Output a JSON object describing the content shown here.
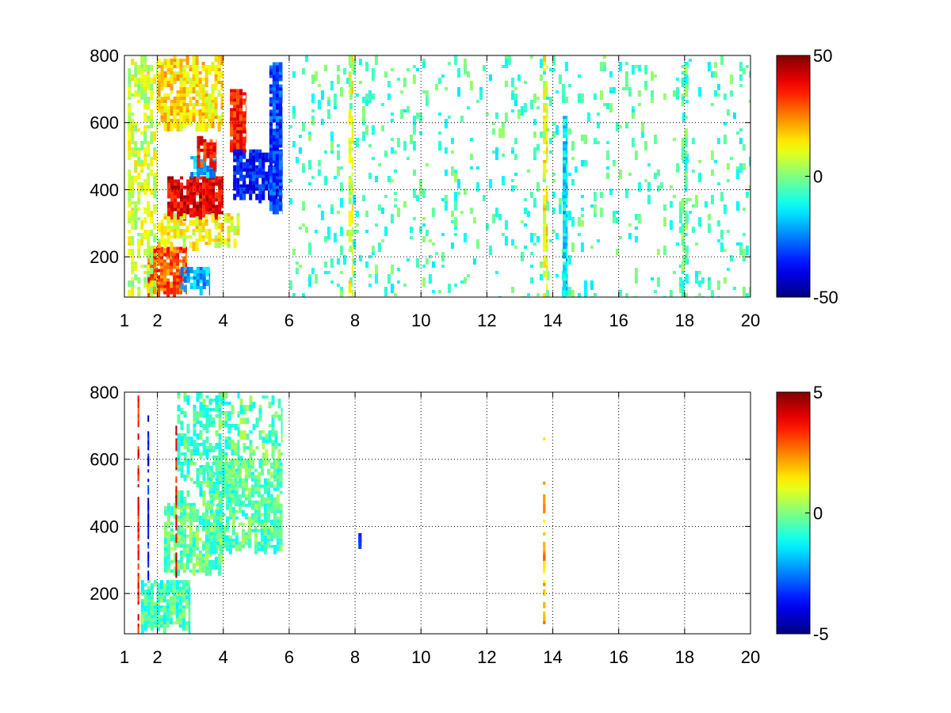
{
  "chart_data": [
    {
      "type": "heatmap",
      "title": "",
      "xlabel": "",
      "ylabel": "",
      "xlim": [
        1,
        20
      ],
      "ylim": [
        80,
        800
      ],
      "x_ticks": [
        "1",
        "2",
        "4",
        "6",
        "8",
        "10",
        "12",
        "14",
        "16",
        "18",
        "20"
      ],
      "x_tick_values": [
        1,
        2,
        4,
        6,
        8,
        10,
        12,
        14,
        16,
        18,
        20
      ],
      "y_ticks": [
        "200",
        "400",
        "600",
        "800"
      ],
      "y_tick_values": [
        200,
        400,
        600,
        800
      ],
      "grid": true,
      "colormap": "jet",
      "colorbar": {
        "min": -50,
        "max": 50,
        "ticks": [
          "50",
          "0",
          "-50"
        ],
        "tick_values": [
          50,
          0,
          -50
        ]
      },
      "features": [
        {
          "x": [
            1.7,
            2.9
          ],
          "y": [
            100,
            230
          ],
          "value": 30,
          "density": 0.8
        },
        {
          "x": [
            2.7,
            3.6
          ],
          "y": [
            110,
            170
          ],
          "value": -20,
          "density": 0.7
        },
        {
          "x": [
            2.3,
            4.0
          ],
          "y": [
            330,
            440
          ],
          "value": 40,
          "density": 0.8
        },
        {
          "x": [
            3.0,
            3.8
          ],
          "y": [
            450,
            500
          ],
          "value": -20,
          "density": 0.6
        },
        {
          "x": [
            3.2,
            3.8
          ],
          "y": [
            480,
            560
          ],
          "value": 35,
          "density": 0.6
        },
        {
          "x": [
            4.2,
            4.7
          ],
          "y": [
            520,
            700
          ],
          "value": 35,
          "density": 0.7
        },
        {
          "x": [
            4.3,
            5.8
          ],
          "y": [
            380,
            520
          ],
          "value": -35,
          "density": 0.7
        },
        {
          "x": [
            5.4,
            5.8
          ],
          "y": [
            350,
            780
          ],
          "value": -30,
          "density": 0.8
        },
        {
          "x": [
            2.0,
            4.0
          ],
          "y": [
            600,
            800
          ],
          "value": 15,
          "density": 0.6
        },
        {
          "x": [
            1.1,
            2.0
          ],
          "y": [
            80,
            800
          ],
          "value": 8,
          "density": 0.35
        },
        {
          "x": [
            2.0,
            4.5
          ],
          "y": [
            240,
            330
          ],
          "value": 12,
          "density": 0.45
        },
        {
          "x": [
            6.0,
            20.0
          ],
          "y": [
            80,
            800
          ],
          "value": -6,
          "density": 0.07
        },
        {
          "x": [
            14.3,
            14.45
          ],
          "y": [
            100,
            620
          ],
          "value": -15,
          "density": 0.9
        },
        {
          "x": [
            13.7,
            13.85
          ],
          "y": [
            80,
            800
          ],
          "value": 12,
          "density": 0.45
        },
        {
          "x": [
            7.8,
            7.95
          ],
          "y": [
            80,
            800
          ],
          "value": 10,
          "density": 0.35
        },
        {
          "x": [
            17.9,
            18.1
          ],
          "y": [
            80,
            800
          ],
          "value": -4,
          "density": 0.35
        }
      ]
    },
    {
      "type": "heatmap",
      "title": "",
      "xlabel": "",
      "ylabel": "",
      "xlim": [
        1,
        20
      ],
      "ylim": [
        80,
        800
      ],
      "x_ticks": [
        "1",
        "2",
        "4",
        "6",
        "8",
        "10",
        "12",
        "14",
        "16",
        "18",
        "20"
      ],
      "x_tick_values": [
        1,
        2,
        4,
        6,
        8,
        10,
        12,
        14,
        16,
        18,
        20
      ],
      "y_ticks": [
        "200",
        "400",
        "600",
        "800"
      ],
      "y_tick_values": [
        200,
        400,
        600,
        800
      ],
      "grid": true,
      "colormap": "jet",
      "colorbar": {
        "min": -5,
        "max": 5,
        "ticks": [
          "5",
          "0",
          "-5"
        ],
        "tick_values": [
          5,
          0,
          -5
        ]
      },
      "features": [
        {
          "x": [
            1.5,
            3.0
          ],
          "y": [
            100,
            240
          ],
          "value": -0.5,
          "density": 0.65
        },
        {
          "x": [
            2.2,
            4.0
          ],
          "y": [
            270,
            470
          ],
          "value": -0.3,
          "density": 0.55
        },
        {
          "x": [
            3.5,
            5.8
          ],
          "y": [
            340,
            600
          ],
          "value": -0.4,
          "density": 0.6
        },
        {
          "x": [
            2.6,
            4.5
          ],
          "y": [
            480,
            800
          ],
          "value": -0.5,
          "density": 0.35
        },
        {
          "x": [
            4.5,
            5.8
          ],
          "y": [
            600,
            790
          ],
          "value": -0.3,
          "density": 0.3
        },
        {
          "x": [
            1.4,
            1.45
          ],
          "y": [
            100,
            790
          ],
          "value": 3.5,
          "density": 0.5
        },
        {
          "x": [
            1.7,
            1.75
          ],
          "y": [
            260,
            740
          ],
          "value": -3.5,
          "density": 0.5
        },
        {
          "x": [
            2.55,
            2.6
          ],
          "y": [
            250,
            700
          ],
          "value": 4,
          "density": 0.45
        },
        {
          "x": [
            13.7,
            13.78
          ],
          "y": [
            110,
            760
          ],
          "value": 2,
          "density": 0.3
        },
        {
          "x": [
            8.1,
            8.2
          ],
          "y": [
            355,
            380
          ],
          "value": -4,
          "density": 0.9
        }
      ]
    }
  ]
}
